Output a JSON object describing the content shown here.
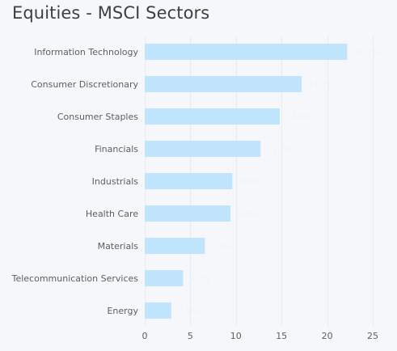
{
  "chart_data": {
    "type": "bar",
    "orientation": "horizontal",
    "title": "Equities - MSCI Sectors",
    "xlabel": "",
    "ylabel": "",
    "categories": [
      "Information Technology",
      "Consumer Discretionary",
      "Consumer Staples",
      "Financials",
      "Industrials",
      "Health Care",
      "Materials",
      "Telecommunication Services",
      "Energy"
    ],
    "values": [
      22.2,
      17.2,
      14.8,
      12.7,
      9.6,
      9.4,
      6.6,
      4.2,
      2.9
    ],
    "value_labels": [
      "22.2%",
      "17.2%",
      "14.8%",
      "12.7%",
      "9.6%",
      "9.4%",
      "6.6%",
      "4.2%",
      "2.9%"
    ],
    "xlim": [
      0,
      25
    ],
    "xticks": [
      0,
      5,
      10,
      15,
      20,
      25
    ],
    "grid": true,
    "bar_color": "#bfe4fb",
    "grid_color": "#e9ecef"
  }
}
